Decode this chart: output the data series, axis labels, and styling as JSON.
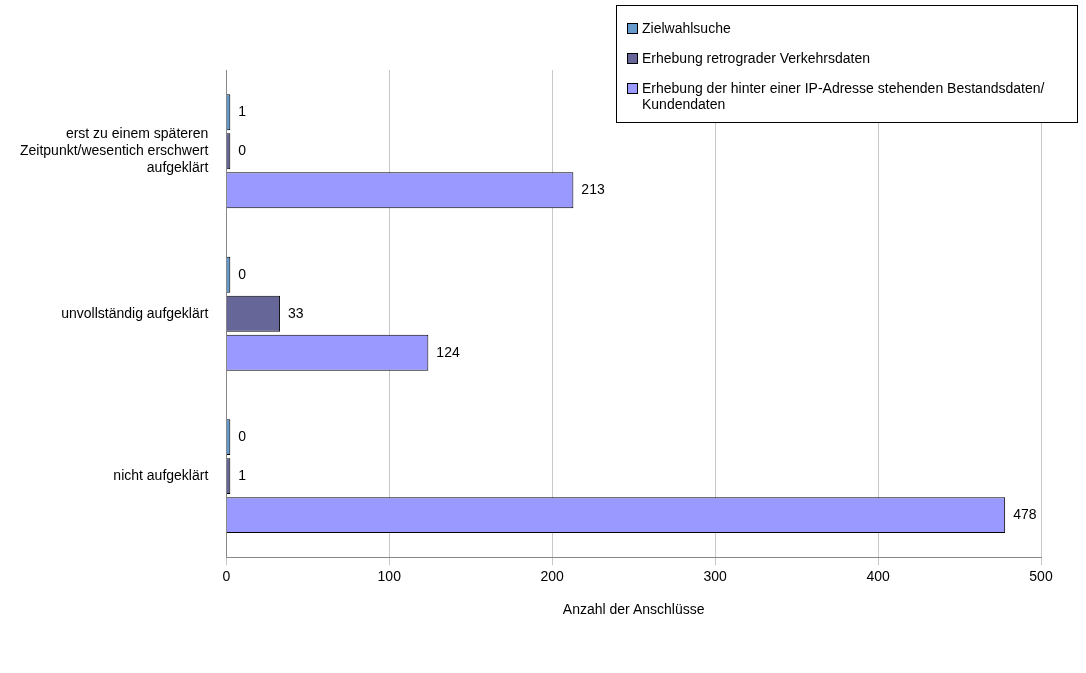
{
  "chart_data": {
    "type": "bar",
    "orientation": "horizontal",
    "xlabel": "Anzahl der Anschlüsse",
    "categories": [
      "erst zu einem späteren Zeitpunkt/wesentich erschwert aufgeklärt",
      "unvollständig aufgeklärt",
      "nicht aufgeklärt"
    ],
    "series": [
      {
        "name": "Zielwahlsuche",
        "color": "#6699cc",
        "values": [
          1,
          0,
          0
        ]
      },
      {
        "name": "Erhebung retrograder Verkehrsdaten",
        "color": "#666699",
        "values": [
          0,
          33,
          1
        ]
      },
      {
        "name": "Erhebung der hinter einer IP-Adresse stehenden Bestandsdaten/ Kundendaten",
        "color": "#9999ff",
        "values": [
          213,
          124,
          478
        ]
      }
    ],
    "xlim": [
      0,
      500
    ],
    "xticks": [
      0,
      100,
      200,
      300,
      400,
      500
    ],
    "grid": "x",
    "legend": "top right",
    "data_labels": true
  }
}
